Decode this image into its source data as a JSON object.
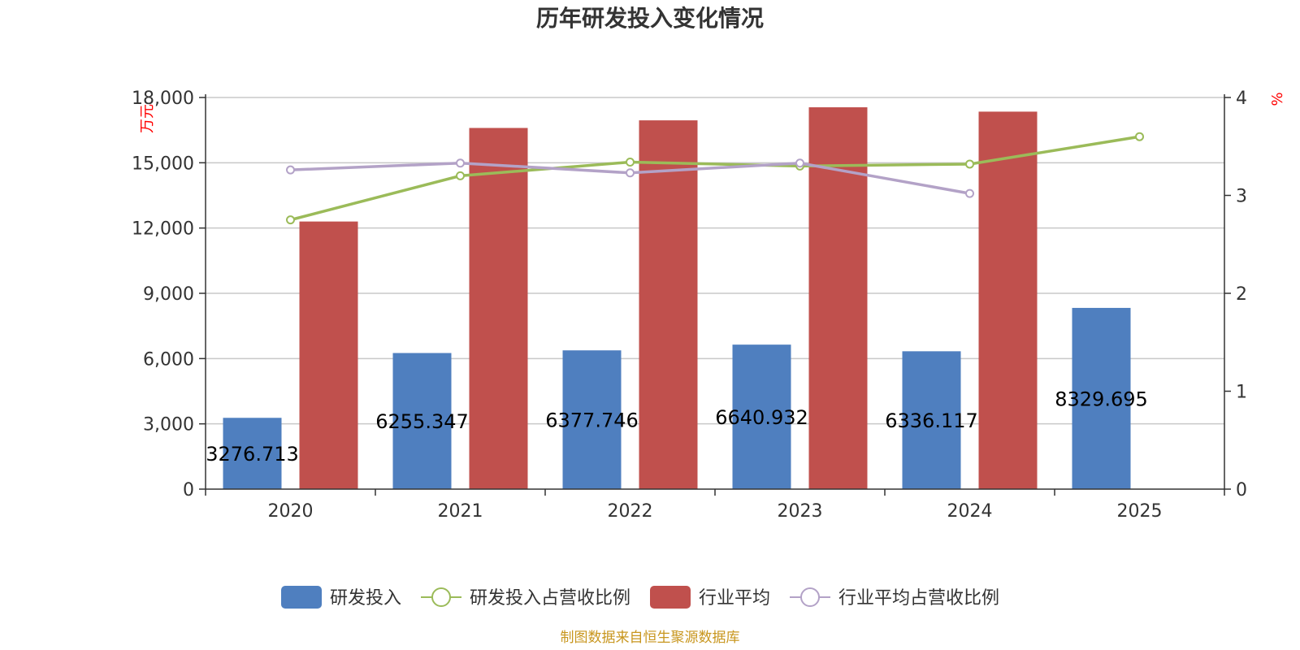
{
  "chart_data": {
    "type": "bar",
    "title": "历年研发投入变化情况",
    "categories": [
      "2020",
      "2021",
      "2022",
      "2023",
      "2024",
      "2025"
    ],
    "y_left": {
      "unit_label": "万元",
      "ylim": [
        0,
        18000
      ],
      "ticks": [
        "0",
        "3,000",
        "6,000",
        "9,000",
        "12,000",
        "15,000",
        "18,000"
      ]
    },
    "y_right": {
      "unit_label": "%",
      "ylim": [
        0,
        4
      ],
      "ticks": [
        "0",
        "1",
        "2",
        "3",
        "4"
      ]
    },
    "series": [
      {
        "name": "研发投入",
        "type": "bar",
        "axis": "left",
        "color": "#4f7fbf",
        "values": [
          3276.713,
          6255.347,
          6377.746,
          6640.932,
          6336.117,
          8329.695
        ],
        "labels": [
          "3276.713",
          "6255.347",
          "6377.746",
          "6640.932",
          "6336.117",
          "8329.695"
        ]
      },
      {
        "name": "研发投入占营收比例",
        "type": "line",
        "axis": "right",
        "color": "#9bbb59",
        "values": [
          2.75,
          3.2,
          3.34,
          3.3,
          3.32,
          3.6
        ]
      },
      {
        "name": "行业平均",
        "type": "bar",
        "axis": "left",
        "color": "#c0504d",
        "values": [
          12300,
          16600,
          16950,
          17550,
          17350,
          null
        ]
      },
      {
        "name": "行业平均占营收比例",
        "type": "line",
        "axis": "right",
        "color": "#b3a2c7",
        "values": [
          3.26,
          3.33,
          3.23,
          3.33,
          3.02,
          null
        ]
      }
    ],
    "grid": true,
    "legend_position": "bottom"
  },
  "source_note": "制图数据来自恒生聚源数据库"
}
